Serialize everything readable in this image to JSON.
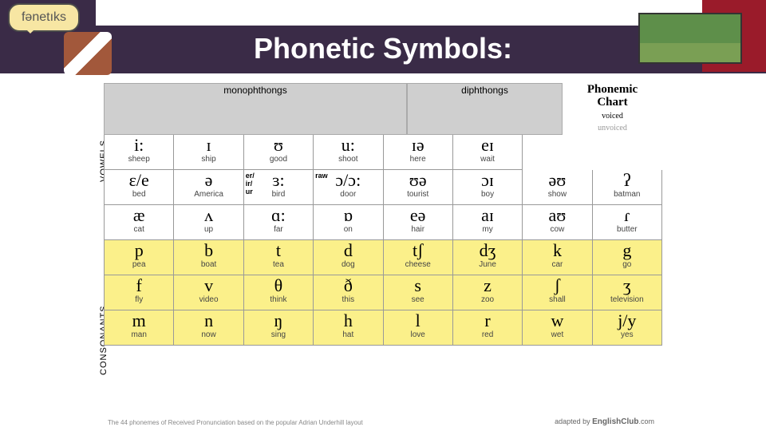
{
  "title": "Phonetic Symbols:",
  "bubble_text": "fənetıks",
  "headers": {
    "mono": "monophthongs",
    "diph": "diphthongs",
    "chart_title_1": "Phonemic",
    "chart_title_2": "Chart",
    "voiced": "voiced",
    "unvoiced": "unvoiced"
  },
  "side": {
    "vowels": "VOWELS",
    "consonants": "CONSONANTS"
  },
  "vowels_row1": [
    {
      "sym": "i:",
      "word": "sheep"
    },
    {
      "sym": "ɪ",
      "word": "ship"
    },
    {
      "sym": "ʊ",
      "word": "good"
    },
    {
      "sym": "u:",
      "word": "shoot"
    },
    {
      "sym": "ɪə",
      "word": "here"
    },
    {
      "sym": "eɪ",
      "word": "wait"
    },
    {
      "sym": "",
      "word": ""
    },
    {
      "sym": "",
      "word": ""
    }
  ],
  "vowels_row2": [
    {
      "sym": "ɛ/e",
      "word": "bed"
    },
    {
      "sym": "ə",
      "word": "America"
    },
    {
      "sym": "ɜ:",
      "word": "bird",
      "pre": "er/\nir/\nur"
    },
    {
      "sym": "ɔ/ɔ:",
      "word": "door",
      "pre": "raw"
    },
    {
      "sym": "ʊə",
      "word": "tourist"
    },
    {
      "sym": "ɔɪ",
      "word": "boy"
    },
    {
      "sym": "əʊ",
      "word": "show"
    },
    {
      "sym": "ʔ",
      "word": "batman"
    }
  ],
  "vowels_row3": [
    {
      "sym": "æ",
      "word": "cat"
    },
    {
      "sym": "ʌ",
      "word": "up"
    },
    {
      "sym": "ɑ:",
      "word": "far"
    },
    {
      "sym": "ɒ",
      "word": "on"
    },
    {
      "sym": "eə",
      "word": "hair"
    },
    {
      "sym": "aɪ",
      "word": "my"
    },
    {
      "sym": "aʊ",
      "word": "cow"
    },
    {
      "sym": "ɾ",
      "word": "butter"
    }
  ],
  "cons_row1": [
    {
      "sym": "p",
      "word": "pea"
    },
    {
      "sym": "b",
      "word": "boat"
    },
    {
      "sym": "t",
      "word": "tea"
    },
    {
      "sym": "d",
      "word": "dog"
    },
    {
      "sym": "tʃ",
      "word": "cheese"
    },
    {
      "sym": "dʒ",
      "word": "June"
    },
    {
      "sym": "k",
      "word": "car"
    },
    {
      "sym": "g",
      "word": "go"
    }
  ],
  "cons_row2": [
    {
      "sym": "f",
      "word": "fly"
    },
    {
      "sym": "v",
      "word": "video"
    },
    {
      "sym": "θ",
      "word": "think"
    },
    {
      "sym": "ð",
      "word": "this"
    },
    {
      "sym": "s",
      "word": "see"
    },
    {
      "sym": "z",
      "word": "zoo"
    },
    {
      "sym": "ʃ",
      "word": "shall"
    },
    {
      "sym": "ʒ",
      "word": "television"
    }
  ],
  "cons_row3": [
    {
      "sym": "m",
      "word": "man"
    },
    {
      "sym": "n",
      "word": "now"
    },
    {
      "sym": "ŋ",
      "word": "sing"
    },
    {
      "sym": "h",
      "word": "hat"
    },
    {
      "sym": "l",
      "word": "love"
    },
    {
      "sym": "r",
      "word": "red"
    },
    {
      "sym": "w",
      "word": "wet"
    },
    {
      "sym": "j/y",
      "word": "yes"
    }
  ],
  "footnote": "The 44 phonemes of Received Pronunciation based on the popular Adrian Underhill layout",
  "credit_prefix": "adapted by",
  "credit_brand": "EnglishClub",
  "credit_suffix": ".com",
  "colors": {
    "band": "#3a2b47",
    "red": "#9a1b2a",
    "cons_bg": "#fbf08a",
    "header_bg": "#cfcfcf"
  }
}
